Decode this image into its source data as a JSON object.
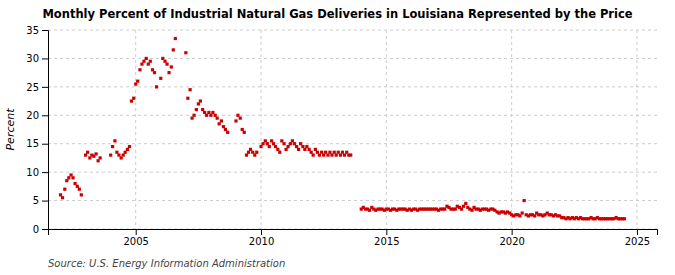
{
  "chart_data": {
    "type": "scatter",
    "title": "Monthly Percent of Industrial Natural Gas Deliveries in Louisiana Represented by the Price",
    "ylabel": "Percent",
    "annotations": [
      "Source: U.S. Energy Information Administration"
    ],
    "color": "#cc0000",
    "marker": "square",
    "grid": true,
    "xlim": [
      2001.5,
      2025.8
    ],
    "xticks": [
      2005,
      2010,
      2015,
      2020,
      2025
    ],
    "ylim": [
      0,
      35
    ],
    "yticks": [
      0,
      5,
      10,
      15,
      20,
      25,
      30,
      35
    ],
    "x": [
      2002.0,
      2002.08,
      2002.17,
      2002.25,
      2002.33,
      2002.42,
      2002.5,
      2002.58,
      2002.67,
      2002.75,
      2002.83,
      2003.0,
      2003.08,
      2003.17,
      2003.25,
      2003.33,
      2003.42,
      2003.5,
      2003.58,
      2004.0,
      2004.08,
      2004.17,
      2004.25,
      2004.33,
      2004.42,
      2004.5,
      2004.58,
      2004.67,
      2004.75,
      2004.83,
      2004.92,
      2005.0,
      2005.08,
      2005.17,
      2005.25,
      2005.33,
      2005.42,
      2005.5,
      2005.58,
      2005.67,
      2005.75,
      2005.83,
      2006.0,
      2006.08,
      2006.17,
      2006.25,
      2006.33,
      2006.42,
      2006.5,
      2006.58,
      2007.0,
      2007.08,
      2007.17,
      2007.25,
      2007.33,
      2007.42,
      2007.5,
      2007.58,
      2007.67,
      2007.75,
      2007.83,
      2007.92,
      2008.0,
      2008.08,
      2008.17,
      2008.25,
      2008.33,
      2008.42,
      2008.5,
      2008.58,
      2008.67,
      2009.0,
      2009.08,
      2009.17,
      2009.25,
      2009.33,
      2009.42,
      2009.5,
      2009.58,
      2009.67,
      2009.75,
      2009.83,
      2010.0,
      2010.08,
      2010.17,
      2010.25,
      2010.33,
      2010.42,
      2010.5,
      2010.58,
      2010.67,
      2010.75,
      2010.83,
      2010.92,
      2011.0,
      2011.08,
      2011.17,
      2011.25,
      2011.33,
      2011.42,
      2011.5,
      2011.58,
      2011.67,
      2011.75,
      2011.83,
      2011.92,
      2012.0,
      2012.08,
      2012.17,
      2012.25,
      2012.33,
      2012.42,
      2012.5,
      2012.58,
      2012.67,
      2012.75,
      2012.83,
      2012.92,
      2013.0,
      2013.08,
      2013.17,
      2013.25,
      2013.33,
      2013.42,
      2013.5,
      2013.58,
      2014.0,
      2014.08,
      2014.17,
      2014.25,
      2014.33,
      2014.42,
      2014.5,
      2014.58,
      2014.67,
      2014.75,
      2014.83,
      2014.92,
      2015.0,
      2015.08,
      2015.17,
      2015.25,
      2015.33,
      2015.42,
      2015.5,
      2015.58,
      2015.67,
      2015.75,
      2015.83,
      2015.92,
      2016.0,
      2016.08,
      2016.17,
      2016.25,
      2016.33,
      2016.42,
      2016.5,
      2016.58,
      2016.67,
      2016.75,
      2016.83,
      2016.92,
      2017.0,
      2017.08,
      2017.17,
      2017.25,
      2017.33,
      2017.42,
      2017.5,
      2017.58,
      2017.67,
      2017.75,
      2017.83,
      2017.92,
      2018.0,
      2018.08,
      2018.17,
      2018.25,
      2018.33,
      2018.42,
      2018.5,
      2018.58,
      2018.67,
      2018.75,
      2018.83,
      2018.92,
      2019.0,
      2019.08,
      2019.17,
      2019.25,
      2019.33,
      2019.42,
      2019.5,
      2019.58,
      2019.67,
      2019.75,
      2019.83,
      2019.92,
      2020.0,
      2020.08,
      2020.17,
      2020.25,
      2020.33,
      2020.42,
      2020.5,
      2020.58,
      2020.67,
      2020.75,
      2020.83,
      2020.92,
      2021.0,
      2021.08,
      2021.17,
      2021.25,
      2021.33,
      2021.42,
      2021.5,
      2021.58,
      2021.67,
      2021.75,
      2021.83,
      2021.92,
      2022.0,
      2022.08,
      2022.17,
      2022.25,
      2022.33,
      2022.42,
      2022.5,
      2022.58,
      2022.67,
      2022.75,
      2022.83,
      2022.92,
      2023.0,
      2023.08,
      2023.17,
      2023.25,
      2023.33,
      2023.42,
      2023.5,
      2023.58,
      2023.67,
      2023.75,
      2023.83,
      2023.92,
      2024.0,
      2024.08,
      2024.17,
      2024.25,
      2024.33,
      2024.42,
      2024.5
    ],
    "values": [
      6.0,
      5.5,
      7.0,
      8.5,
      9.0,
      9.5,
      9.0,
      8.0,
      7.5,
      7.0,
      6.0,
      13.0,
      13.5,
      12.5,
      13.0,
      12.8,
      13.2,
      12.0,
      12.5,
      13.0,
      14.5,
      15.5,
      13.5,
      13.0,
      12.5,
      13.0,
      13.5,
      14.0,
      14.5,
      22.5,
      23.0,
      25.5,
      26.0,
      28.0,
      29.0,
      29.5,
      30.0,
      29.0,
      29.5,
      28.0,
      27.5,
      25.0,
      26.5,
      30.0,
      29.5,
      29.0,
      27.5,
      28.5,
      31.5,
      33.5,
      31.0,
      23.0,
      24.5,
      19.5,
      20.0,
      21.0,
      22.0,
      22.5,
      21.0,
      20.5,
      20.0,
      20.5,
      20.0,
      20.5,
      20.0,
      19.5,
      18.5,
      19.0,
      18.0,
      17.5,
      17.0,
      19.0,
      20.0,
      19.5,
      17.5,
      17.0,
      13.0,
      13.5,
      14.0,
      13.5,
      13.0,
      13.5,
      14.5,
      15.0,
      15.5,
      15.0,
      14.5,
      15.5,
      15.0,
      14.5,
      14.0,
      13.5,
      15.5,
      15.0,
      14.0,
      14.5,
      15.0,
      15.5,
      15.0,
      14.5,
      14.0,
      15.0,
      14.5,
      14.0,
      14.5,
      14.0,
      13.5,
      13.0,
      14.0,
      13.5,
      13.0,
      13.5,
      13.0,
      13.5,
      13.0,
      13.5,
      13.0,
      13.5,
      13.0,
      13.5,
      13.0,
      13.5,
      13.0,
      13.5,
      13.0,
      13.0,
      3.5,
      3.8,
      3.5,
      3.5,
      3.3,
      3.8,
      3.5,
      3.3,
      3.5,
      3.5,
      3.5,
      3.3,
      3.5,
      3.5,
      3.3,
      3.5,
      3.5,
      3.3,
      3.5,
      3.5,
      3.5,
      3.5,
      3.3,
      3.5,
      3.3,
      3.5,
      3.5,
      3.3,
      3.5,
      3.5,
      3.5,
      3.5,
      3.5,
      3.5,
      3.5,
      3.5,
      3.5,
      3.3,
      3.5,
      3.5,
      3.5,
      4.0,
      3.8,
      3.5,
      3.5,
      3.5,
      4.0,
      3.8,
      3.5,
      4.0,
      4.5,
      3.8,
      3.5,
      3.3,
      3.8,
      3.5,
      3.5,
      3.3,
      3.5,
      3.5,
      3.5,
      3.3,
      3.5,
      3.5,
      3.3,
      3.0,
      2.8,
      3.0,
      3.0,
      2.8,
      3.0,
      2.8,
      2.5,
      2.3,
      2.5,
      2.5,
      2.3,
      2.8,
      5.0,
      2.5,
      2.3,
      2.5,
      2.5,
      2.3,
      2.8,
      2.5,
      2.5,
      2.3,
      2.5,
      2.8,
      2.5,
      2.5,
      2.3,
      2.5,
      2.3,
      2.3,
      2.0,
      2.0,
      1.8,
      2.0,
      1.8,
      2.0,
      1.8,
      2.0,
      1.8,
      2.0,
      1.8,
      1.8,
      1.8,
      1.8,
      2.0,
      1.8,
      1.8,
      2.0,
      1.8,
      1.8,
      1.8,
      1.8,
      1.8,
      1.8,
      1.8,
      1.8,
      2.0,
      1.8,
      1.8,
      1.8,
      1.8
    ]
  }
}
